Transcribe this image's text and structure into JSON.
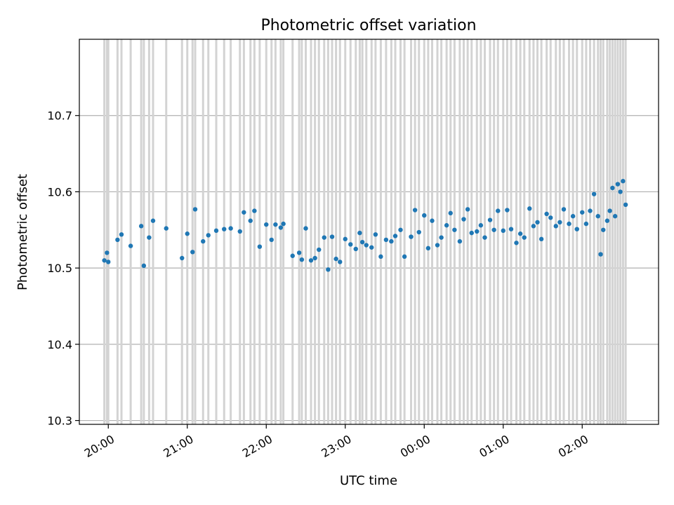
{
  "chart_data": {
    "type": "scatter",
    "title": "Photometric offset variation",
    "xlabel": "UTC time",
    "ylabel": "Photometric offset",
    "x_ticks": [
      "20:00",
      "21:00",
      "22:00",
      "23:00",
      "00:00",
      "01:00",
      "02:00"
    ],
    "y_ticks": [
      "10.3",
      "10.4",
      "10.5",
      "10.6",
      "10.7"
    ],
    "x_range": [
      "19:38",
      "02:58"
    ],
    "ylim": [
      10.295,
      10.8
    ],
    "grid": true,
    "marker_color": "#1f77b4",
    "errorbar_color": "#d3d3d3",
    "series": [
      {
        "values": [
          [
            "19:57",
            10.51,
            10.145
          ],
          [
            "19:59",
            10.52,
            10.165
          ],
          [
            "20:00",
            10.508,
            10.165
          ],
          [
            "20:07",
            10.537,
            10.165
          ],
          [
            "20:10",
            10.544,
            10.165
          ],
          [
            "20:17",
            10.529,
            10.165
          ],
          [
            "20:25",
            10.555,
            10.15
          ],
          [
            "20:27",
            10.503,
            10.155
          ],
          [
            "20:31",
            10.54,
            10.165
          ],
          [
            "20:34",
            10.562,
            10.15
          ],
          [
            "20:44",
            10.552,
            10.165
          ],
          [
            "20:56",
            10.513,
            10.155
          ],
          [
            "21:00",
            10.545,
            10.165
          ],
          [
            "21:04",
            10.521,
            10.165
          ],
          [
            "21:06",
            10.577,
            10.165
          ],
          [
            "21:12",
            10.535,
            10.165
          ],
          [
            "21:16",
            10.543,
            10.165
          ],
          [
            "21:22",
            10.549,
            10.165
          ],
          [
            "21:28",
            10.551,
            10.165
          ],
          [
            "21:33",
            10.552,
            10.165
          ],
          [
            "21:40",
            10.548,
            10.165
          ],
          [
            "21:43",
            10.573,
            10.165
          ],
          [
            "21:48",
            10.562,
            10.165
          ],
          [
            "21:51",
            10.575,
            10.165
          ],
          [
            "21:55",
            10.528,
            10.165
          ],
          [
            "22:00",
            10.557,
            10.165
          ],
          [
            "22:04",
            10.537,
            10.165
          ],
          [
            "22:07",
            10.557,
            10.165
          ],
          [
            "22:11",
            10.553,
            10.165
          ],
          [
            "22:13",
            10.558,
            10.165
          ],
          [
            "22:20",
            10.516,
            10.165
          ],
          [
            "22:25",
            10.52,
            10.175
          ],
          [
            "22:27",
            10.511,
            10.175
          ],
          [
            "22:30",
            10.552,
            10.175
          ],
          [
            "22:34",
            10.51,
            10.175
          ],
          [
            "22:37",
            10.513,
            10.175
          ],
          [
            "22:40",
            10.524,
            10.175
          ],
          [
            "22:44",
            10.54,
            10.175
          ],
          [
            "22:47",
            10.498,
            10.175
          ],
          [
            "22:50",
            10.541,
            10.175
          ],
          [
            "22:53",
            10.512,
            10.175
          ],
          [
            "22:56",
            10.508,
            10.175
          ],
          [
            "23:00",
            10.538,
            10.175
          ],
          [
            "23:04",
            10.531,
            10.165
          ],
          [
            "23:08",
            10.525,
            10.165
          ],
          [
            "23:11",
            10.546,
            10.165
          ],
          [
            "23:13",
            10.534,
            10.165
          ],
          [
            "23:16",
            10.53,
            10.165
          ],
          [
            "23:20",
            10.527,
            10.165
          ],
          [
            "23:23",
            10.544,
            10.165
          ],
          [
            "23:27",
            10.515,
            10.165
          ],
          [
            "23:31",
            10.537,
            10.165
          ],
          [
            "23:35",
            10.535,
            10.165
          ],
          [
            "23:38",
            10.542,
            10.165
          ],
          [
            "23:42",
            10.55,
            10.165
          ],
          [
            "23:45",
            10.515,
            10.165
          ],
          [
            "23:50",
            10.541,
            10.165
          ],
          [
            "23:53",
            10.576,
            10.165
          ],
          [
            "23:56",
            10.547,
            10.165
          ],
          [
            "00:00",
            10.569,
            10.165
          ],
          [
            "00:03",
            10.526,
            10.165
          ],
          [
            "00:06",
            10.562,
            10.165
          ],
          [
            "00:10",
            10.53,
            10.165
          ],
          [
            "00:13",
            10.54,
            10.165
          ],
          [
            "00:17",
            10.556,
            10.165
          ],
          [
            "00:20",
            10.572,
            10.165
          ],
          [
            "00:23",
            10.55,
            10.165
          ],
          [
            "00:27",
            10.535,
            10.165
          ],
          [
            "00:30",
            10.564,
            10.165
          ],
          [
            "00:33",
            10.577,
            10.165
          ],
          [
            "00:36",
            10.546,
            10.165
          ],
          [
            "00:40",
            10.548,
            10.165
          ],
          [
            "00:43",
            10.556,
            10.165
          ],
          [
            "00:46",
            10.54,
            10.165
          ],
          [
            "00:50",
            10.563,
            10.165
          ],
          [
            "00:53",
            10.55,
            10.165
          ],
          [
            "00:56",
            10.575,
            10.165
          ],
          [
            "01:00",
            10.549,
            10.165
          ],
          [
            "01:03",
            10.576,
            10.165
          ],
          [
            "01:06",
            10.551,
            10.165
          ],
          [
            "01:10",
            10.533,
            10.165
          ],
          [
            "01:13",
            10.545,
            10.165
          ],
          [
            "01:16",
            10.54,
            10.165
          ],
          [
            "01:20",
            10.578,
            10.165
          ],
          [
            "01:23",
            10.555,
            10.165
          ],
          [
            "01:26",
            10.56,
            10.165
          ],
          [
            "01:29",
            10.538,
            10.165
          ],
          [
            "01:33",
            10.571,
            10.165
          ],
          [
            "01:36",
            10.566,
            10.165
          ],
          [
            "01:40",
            10.555,
            10.165
          ],
          [
            "01:43",
            10.56,
            10.165
          ],
          [
            "01:46",
            10.577,
            10.165
          ],
          [
            "01:50",
            10.558,
            10.165
          ],
          [
            "01:53",
            10.568,
            10.165
          ],
          [
            "01:56",
            10.551,
            10.165
          ],
          [
            "02:00",
            10.573,
            10.165
          ],
          [
            "02:03",
            10.558,
            10.165
          ],
          [
            "02:06",
            10.575,
            10.165
          ],
          [
            "02:09",
            10.597,
            10.165
          ],
          [
            "02:12",
            10.568,
            10.165
          ],
          [
            "02:14",
            10.518,
            10.165
          ],
          [
            "02:16",
            10.55,
            10.165
          ],
          [
            "02:19",
            10.562,
            10.165
          ],
          [
            "02:21",
            10.575,
            10.165
          ],
          [
            "02:23",
            10.605,
            10.175
          ],
          [
            "02:25",
            10.568,
            10.175
          ],
          [
            "02:27",
            10.61,
            10.175
          ],
          [
            "02:29",
            10.6,
            10.175
          ],
          [
            "02:31",
            10.614,
            10.175
          ],
          [
            "02:33",
            10.583,
            10.175
          ]
        ]
      }
    ]
  }
}
